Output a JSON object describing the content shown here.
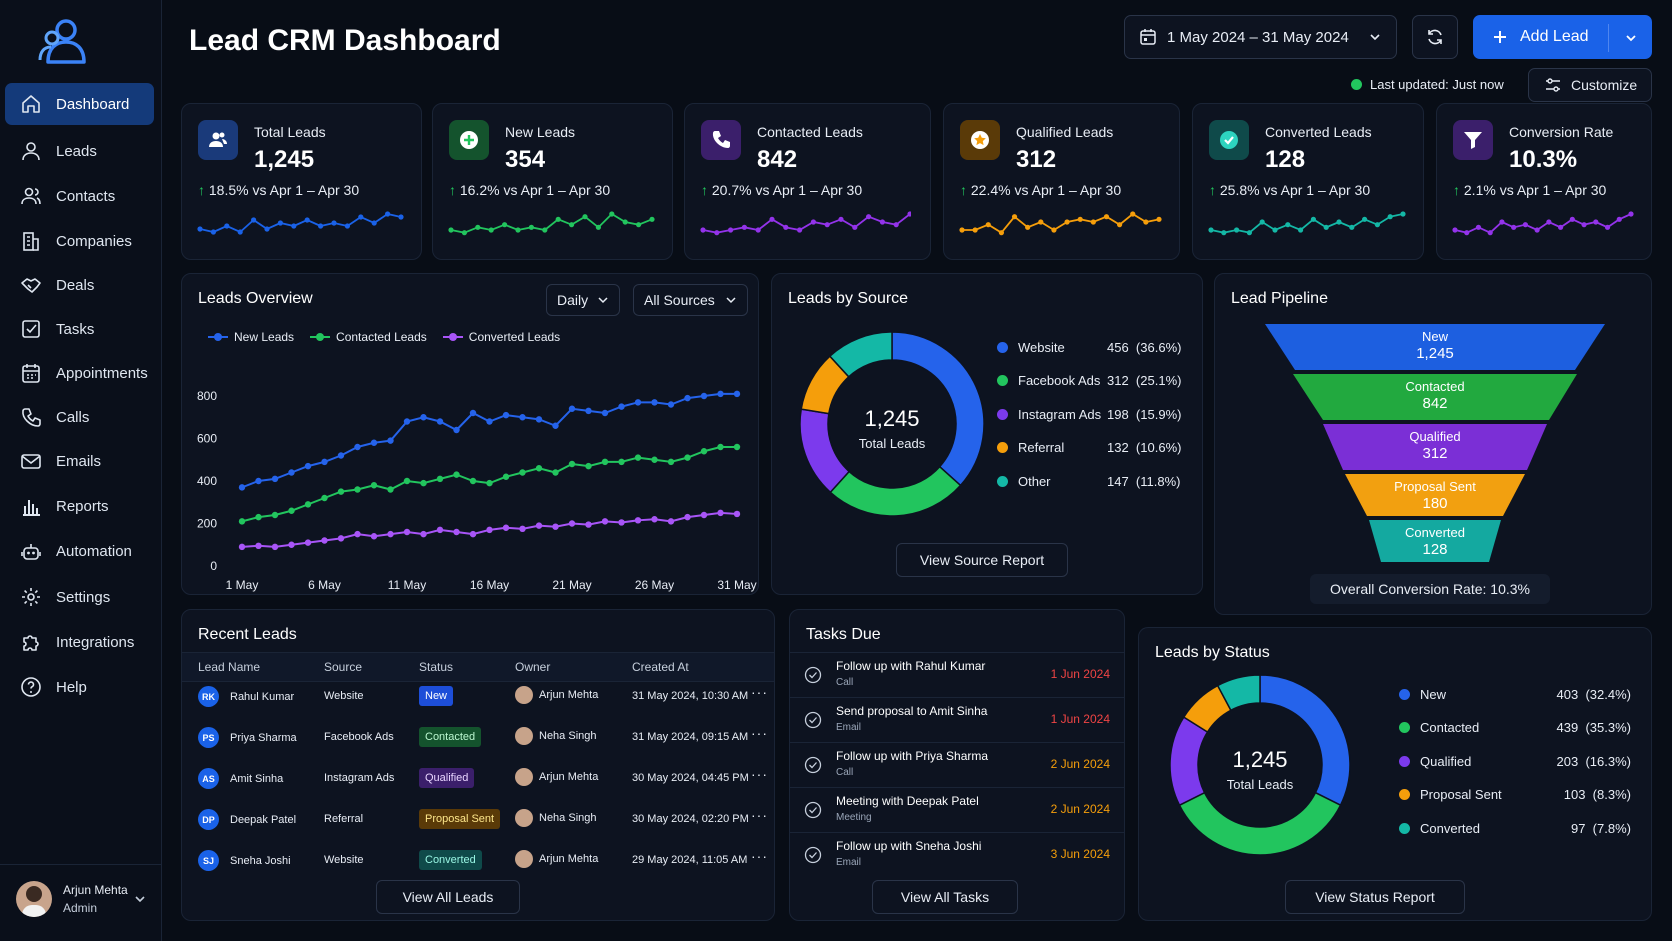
{
  "sidebar": {
    "items": [
      {
        "label": "Dashboard",
        "icon": "home-icon"
      },
      {
        "label": "Leads",
        "icon": "user-icon"
      },
      {
        "label": "Contacts",
        "icon": "users-icon"
      },
      {
        "label": "Companies",
        "icon": "building-icon"
      },
      {
        "label": "Deals",
        "icon": "handshake-icon"
      },
      {
        "label": "Tasks",
        "icon": "check-square-icon"
      },
      {
        "label": "Appointments",
        "icon": "calendar-icon"
      },
      {
        "label": "Calls",
        "icon": "phone-icon"
      },
      {
        "label": "Emails",
        "icon": "mail-icon"
      },
      {
        "label": "Reports",
        "icon": "bar-chart-icon"
      },
      {
        "label": "Automation",
        "icon": "robot-icon"
      },
      {
        "label": "Settings",
        "icon": "gear-icon"
      },
      {
        "label": "Integrations",
        "icon": "puzzle-icon"
      },
      {
        "label": "Help",
        "icon": "help-icon"
      }
    ],
    "user": {
      "name": "Arjun Mehta",
      "role": "Admin"
    }
  },
  "header": {
    "title": "Lead CRM Dashboard",
    "date_range": "1 May 2024 – 31 May 2024",
    "add_lead": "Add Lead",
    "last_updated": "Last updated: Just now",
    "customize": "Customize"
  },
  "stats": [
    {
      "title": "Total Leads",
      "value": "1,245",
      "delta": "18.5%",
      "compare": "vs Apr 1 – Apr 30",
      "color": "#1a62e8",
      "icon": "users-icon",
      "spark": [
        3,
        2,
        4,
        2,
        6,
        3,
        5,
        4,
        6,
        4,
        5,
        4,
        7,
        5,
        8,
        7
      ]
    },
    {
      "title": "New Leads",
      "value": "354",
      "delta": "16.2%",
      "compare": "vs Apr 1 – Apr 30",
      "color": "#22c55e",
      "icon": "plus-icon",
      "spark": [
        3,
        2,
        4,
        3,
        5,
        3,
        4,
        3,
        7,
        5,
        8,
        4,
        9,
        6,
        5,
        7
      ]
    },
    {
      "title": "Contacted Leads",
      "value": "842",
      "delta": "20.7%",
      "compare": "vs Apr 1 – Apr 30",
      "color": "#9333ea",
      "icon": "phone-icon",
      "spark": [
        3,
        2,
        3,
        4,
        3,
        7,
        4,
        3,
        6,
        5,
        7,
        4,
        8,
        6,
        5,
        9
      ]
    },
    {
      "title": "Qualified Leads",
      "value": "312",
      "delta": "22.4%",
      "compare": "vs Apr 1 – Apr 30",
      "color": "#f59e0b",
      "icon": "star-icon",
      "spark": [
        3,
        3,
        5,
        2,
        8,
        4,
        6,
        3,
        6,
        7,
        6,
        8,
        5,
        9,
        6,
        7
      ]
    },
    {
      "title": "Converted Leads",
      "value": "128",
      "delta": "25.8%",
      "compare": "vs Apr 1 – Apr 30",
      "color": "#14b8a6",
      "icon": "check-circle-icon",
      "spark": [
        3,
        2,
        3,
        2,
        6,
        3,
        5,
        3,
        7,
        4,
        6,
        4,
        7,
        5,
        8,
        9
      ]
    },
    {
      "title": "Conversion Rate",
      "value": "10.3%",
      "delta": "2.1%",
      "compare": "vs Apr 1 – Apr 30",
      "color": "#9333ea",
      "icon": "funnel-icon",
      "spark": [
        3,
        2,
        4,
        2,
        6,
        4,
        5,
        3,
        6,
        4,
        7,
        5,
        6,
        4,
        7,
        9
      ]
    }
  ],
  "overview": {
    "title": "Leads Overview",
    "period": "Daily",
    "sources": "All Sources"
  },
  "chart_data": [
    {
      "type": "line",
      "title": "Leads Overview",
      "x": [
        "1 May",
        "2 May",
        "3 May",
        "4 May",
        "5 May",
        "6 May",
        "7 May",
        "8 May",
        "9 May",
        "10 May",
        "11 May",
        "12 May",
        "13 May",
        "14 May",
        "15 May",
        "16 May",
        "17 May",
        "18 May",
        "19 May",
        "20 May",
        "21 May",
        "22 May",
        "23 May",
        "24 May",
        "25 May",
        "26 May",
        "27 May",
        "28 May",
        "29 May",
        "30 May",
        "31 May"
      ],
      "xticks": [
        "1 May",
        "6 May",
        "11 May",
        "16 May",
        "21 May",
        "26 May",
        "31 May"
      ],
      "ylim": [
        0,
        800
      ],
      "yticks": [
        0,
        200,
        400,
        600,
        800
      ],
      "series": [
        {
          "name": "New Leads",
          "color": "#2563eb",
          "values": [
            370,
            400,
            410,
            440,
            470,
            490,
            520,
            560,
            580,
            590,
            680,
            700,
            680,
            640,
            720,
            680,
            710,
            700,
            690,
            660,
            740,
            730,
            720,
            750,
            770,
            770,
            760,
            790,
            800,
            810,
            810
          ]
        },
        {
          "name": "Contacted Leads",
          "color": "#22c55e",
          "values": [
            210,
            230,
            240,
            260,
            290,
            320,
            350,
            360,
            380,
            360,
            400,
            390,
            410,
            430,
            400,
            390,
            420,
            440,
            460,
            440,
            480,
            470,
            490,
            490,
            510,
            500,
            490,
            510,
            540,
            560,
            560
          ]
        },
        {
          "name": "Converted Leads",
          "color": "#a855f7",
          "values": [
            90,
            95,
            90,
            100,
            110,
            120,
            130,
            150,
            140,
            150,
            160,
            150,
            170,
            160,
            150,
            170,
            180,
            175,
            190,
            185,
            200,
            195,
            210,
            205,
            215,
            220,
            210,
            230,
            240,
            250,
            245
          ]
        }
      ]
    },
    {
      "type": "pie",
      "title": "Leads by Source",
      "categories": [
        "Website",
        "Facebook Ads",
        "Instagram Ads",
        "Referral",
        "Other"
      ],
      "values": [
        456,
        312,
        198,
        132,
        147
      ],
      "percents": [
        "36.6%",
        "25.1%",
        "15.9%",
        "10.6%",
        "11.8%"
      ],
      "colors": [
        "#2563eb",
        "#22c55e",
        "#7c3aed",
        "#f59e0b",
        "#14b8a6"
      ],
      "center_value": "1,245",
      "center_label": "Total Leads"
    },
    {
      "type": "pie",
      "title": "Leads by Status",
      "categories": [
        "New",
        "Contacted",
        "Qualified",
        "Proposal Sent",
        "Converted"
      ],
      "values": [
        403,
        439,
        203,
        103,
        97
      ],
      "percents": [
        "32.4%",
        "35.3%",
        "16.3%",
        "8.3%",
        "7.8%"
      ],
      "colors": [
        "#2563eb",
        "#22c55e",
        "#7c3aed",
        "#f59e0b",
        "#14b8a6"
      ],
      "center_value": "1,245",
      "center_label": "Total Leads"
    }
  ],
  "source": {
    "title": "Leads by Source",
    "button": "View Source Report"
  },
  "pipeline": {
    "title": "Lead Pipeline",
    "stages": [
      {
        "label": "New",
        "value": "1,245",
        "color": "#1d5fe0"
      },
      {
        "label": "Contacted",
        "value": "842",
        "color": "#22a93f"
      },
      {
        "label": "Qualified",
        "value": "312",
        "color": "#7b2fd6"
      },
      {
        "label": "Proposal Sent",
        "value": "180",
        "color": "#f2a010"
      },
      {
        "label": "Converted",
        "value": "128",
        "color": "#14a9a0"
      }
    ],
    "overall": "Overall Conversion Rate: 10.3%"
  },
  "recent": {
    "title": "Recent Leads",
    "headers": [
      "Lead Name",
      "Source",
      "Status",
      "Owner",
      "Created At"
    ],
    "rows": [
      {
        "initials": "RK",
        "name": "Rahul Kumar",
        "source": "Website",
        "status": "New",
        "owner": "Arjun Mehta",
        "created": "31 May 2024, 10:30 AM"
      },
      {
        "initials": "PS",
        "name": "Priya Sharma",
        "source": "Facebook Ads",
        "status": "Contacted",
        "owner": "Neha Singh",
        "created": "31 May 2024, 09:15 AM"
      },
      {
        "initials": "AS",
        "name": "Amit Sinha",
        "source": "Instagram Ads",
        "status": "Qualified",
        "owner": "Arjun Mehta",
        "created": "30 May 2024, 04:45 PM"
      },
      {
        "initials": "DP",
        "name": "Deepak Patel",
        "source": "Referral",
        "status": "Proposal Sent",
        "owner": "Neha Singh",
        "created": "30 May 2024, 02:20 PM"
      },
      {
        "initials": "SJ",
        "name": "Sneha Joshi",
        "source": "Website",
        "status": "Converted",
        "owner": "Arjun Mehta",
        "created": "29 May 2024, 11:05 AM"
      }
    ],
    "button": "View All Leads"
  },
  "tasks": {
    "title": "Tasks Due",
    "items": [
      {
        "title": "Follow up with Rahul Kumar",
        "type": "Call",
        "date": "1 Jun 2024",
        "color": "#ef4444"
      },
      {
        "title": "Send proposal to Amit Sinha",
        "type": "Email",
        "date": "1 Jun 2024",
        "color": "#ef4444"
      },
      {
        "title": "Follow up with Priya Sharma",
        "type": "Call",
        "date": "2 Jun 2024",
        "color": "#f59e0b"
      },
      {
        "title": "Meeting with Deepak Patel",
        "type": "Meeting",
        "date": "2 Jun 2024",
        "color": "#f59e0b"
      },
      {
        "title": "Follow up with Sneha Joshi",
        "type": "Email",
        "date": "3 Jun 2024",
        "color": "#f59e0b"
      }
    ],
    "button": "View All Tasks"
  },
  "status": {
    "title": "Leads by Status",
    "button": "View Status Report"
  }
}
